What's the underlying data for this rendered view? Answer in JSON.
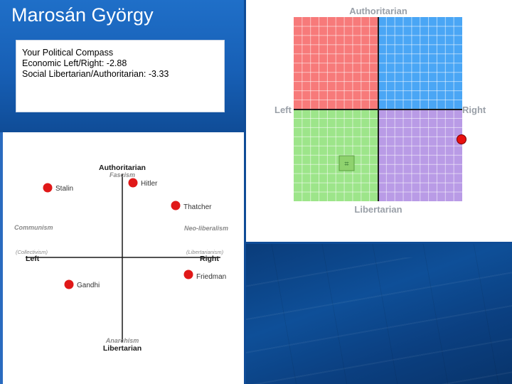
{
  "slide": {
    "title": "Marosán György"
  },
  "info_box": {
    "line1": "Your Political Compass",
    "line2": "Economic Left/Right: -2.88",
    "line3": "Social Libertarian/Authoritarian: -3.33"
  },
  "user_compass": {
    "top_label": "Authoritarian",
    "bottom_label": "Libertarian",
    "left_label": "Left",
    "right_label": "Right",
    "quadrant_colors": {
      "top_left": "#f77a7a",
      "top_right": "#4aa6f5",
      "bottom_left": "#9de58a",
      "bottom_right": "#b99be6"
    },
    "marker_glyph": "⌗",
    "marker_color": "#2e9e2e",
    "user_dot_color": "#e81010",
    "range": [
      -10,
      10
    ],
    "user_point": {
      "economic": -2.88,
      "social": -3.33
    }
  },
  "famous_compass": {
    "top_label": "Authoritarian",
    "top_sub": "Fascism",
    "bottom_label": "Libertarian",
    "bottom_sub": "Anarchism",
    "left_label": "Left",
    "left_sub": "Communism",
    "left_sub2": "(Collectivism)",
    "right_label": "Right",
    "right_sub": "Neo-liberalism",
    "right_sub2": "(Libertarianism)",
    "dot_color": "#e01818",
    "people": [
      {
        "name": "Stalin"
      },
      {
        "name": "Hitler"
      },
      {
        "name": "Thatcher"
      },
      {
        "name": "Friedman"
      },
      {
        "name": "Gandhi"
      }
    ]
  }
}
